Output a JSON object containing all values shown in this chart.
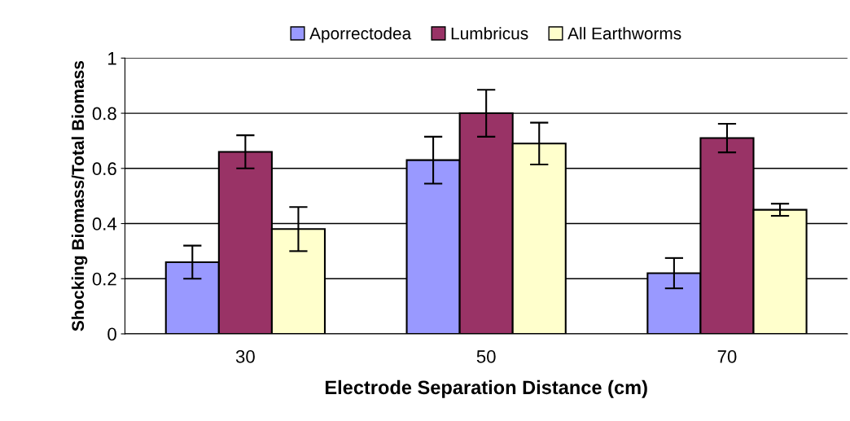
{
  "chart_data": {
    "type": "bar",
    "xlabel": "Electrode Separation Distance (cm)",
    "ylabel": "Shocking Biomass/Total Biomass",
    "categories": [
      "30",
      "50",
      "70"
    ],
    "series": [
      {
        "name": "Aporrectodea",
        "color": "#9999ff",
        "values": [
          0.26,
          0.63,
          0.22
        ],
        "errors": [
          0.06,
          0.085,
          0.055
        ]
      },
      {
        "name": "Lumbricus",
        "color": "#993366",
        "values": [
          0.66,
          0.8,
          0.71
        ],
        "errors": [
          0.06,
          0.085,
          0.052
        ]
      },
      {
        "name": "All Earthworms",
        "color": "#ffffcc",
        "values": [
          0.38,
          0.69,
          0.45
        ],
        "errors": [
          0.08,
          0.076,
          0.022
        ]
      }
    ],
    "ylim": [
      0,
      1
    ],
    "yticks": [
      0,
      0.2,
      0.4,
      0.6,
      0.8,
      1
    ],
    "grid": "y",
    "legend": "top"
  }
}
